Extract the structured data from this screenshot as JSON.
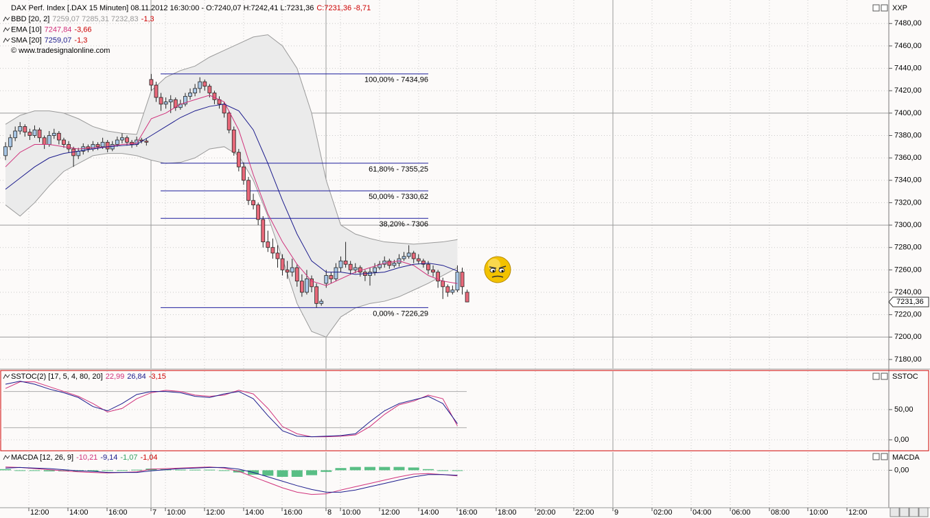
{
  "chart_data": [
    {
      "type": "candlestick",
      "title": "DAX Perf. Index [.DAX  15 Minuten] 08.11.2012 16:30:00 - O:7240,07 H:7242,41 L:7231,36",
      "title_change": "C:7231,36 -8,71",
      "change_color": "#cc0000",
      "source": "© www.tradesignalonline.com",
      "axis_title": "XXP",
      "last_label": "7231,36",
      "up_color": "#a9c7e6",
      "down_color": "#e8697a",
      "ylim": [
        7172,
        7501
      ],
      "yticks": [
        {
          "value": 7180,
          "label": "7180,00"
        },
        {
          "value": 7200,
          "label": "7200,00"
        },
        {
          "value": 7220,
          "label": "7220,00"
        },
        {
          "value": 7240,
          "label": "7240,00"
        },
        {
          "value": 7260,
          "label": "7260,00"
        },
        {
          "value": 7280,
          "label": "7280,00"
        },
        {
          "value": 7300,
          "label": "7300,00"
        },
        {
          "value": 7320,
          "label": "7320,00"
        },
        {
          "value": 7340,
          "label": "7340,00"
        },
        {
          "value": 7360,
          "label": "7360,00"
        },
        {
          "value": 7380,
          "label": "7380,00"
        },
        {
          "value": 7400,
          "label": "7400,00"
        },
        {
          "value": 7420,
          "label": "7420,00"
        },
        {
          "value": 7440,
          "label": "7440,00"
        },
        {
          "value": 7460,
          "label": "7460,00"
        },
        {
          "value": 7480,
          "label": "7480,00"
        }
      ],
      "grid": true,
      "candles": [
        [
          7362,
          7374,
          7358,
          7370
        ],
        [
          7370,
          7381,
          7367,
          7378
        ],
        [
          7378,
          7388,
          7375,
          7384
        ],
        [
          7384,
          7392,
          7381,
          7388
        ],
        [
          7388,
          7390,
          7379,
          7383
        ],
        [
          7383,
          7386,
          7376,
          7380
        ],
        [
          7380,
          7389,
          7378,
          7385
        ],
        [
          7385,
          7387,
          7374,
          7378
        ],
        [
          7378,
          7380,
          7368,
          7372
        ],
        [
          7372,
          7384,
          7370,
          7380
        ],
        [
          7380,
          7386,
          7377,
          7382
        ],
        [
          7382,
          7384,
          7372,
          7376
        ],
        [
          7376,
          7378,
          7369,
          7372
        ],
        [
          7372,
          7375,
          7365,
          7368
        ],
        [
          7368,
          7370,
          7352,
          7362
        ],
        [
          7362,
          7369,
          7359,
          7366
        ],
        [
          7366,
          7373,
          7363,
          7370
        ],
        [
          7370,
          7372,
          7365,
          7368
        ],
        [
          7368,
          7375,
          7366,
          7372
        ],
        [
          7372,
          7374,
          7367,
          7370
        ],
        [
          7370,
          7378,
          7368,
          7374
        ],
        [
          7374,
          7376,
          7365,
          7368
        ],
        [
          7368,
          7375,
          7366,
          7372
        ],
        [
          7372,
          7379,
          7370,
          7376
        ],
        [
          7376,
          7382,
          7373,
          7378
        ],
        [
          7378,
          7380,
          7371,
          7374
        ],
        [
          7374,
          7376,
          7369,
          7372
        ],
        [
          7372,
          7379,
          7370,
          7376
        ],
        [
          7376,
          7378,
          7373,
          7375
        ],
        [
          7375,
          7377,
          7371,
          7374
        ],
        [
          7430,
          7434.96,
          7420,
          7425
        ],
        [
          7425,
          7428,
          7410,
          7414
        ],
        [
          7414,
          7418,
          7402,
          7408
        ],
        [
          7408,
          7414,
          7404,
          7410
        ],
        [
          7410,
          7416,
          7400,
          7412
        ],
        [
          7412,
          7414,
          7402,
          7405
        ],
        [
          7405,
          7412,
          7403,
          7408
        ],
        [
          7408,
          7418,
          7406,
          7415
        ],
        [
          7415,
          7422,
          7412,
          7418
        ],
        [
          7418,
          7426,
          7415,
          7422
        ],
        [
          7422,
          7432,
          7418,
          7428
        ],
        [
          7428,
          7430,
          7420,
          7424
        ],
        [
          7424,
          7426,
          7414,
          7418
        ],
        [
          7418,
          7420,
          7408,
          7412
        ],
        [
          7412,
          7415,
          7404,
          7408
        ],
        [
          7408,
          7410,
          7396,
          7400
        ],
        [
          7400,
          7402,
          7382,
          7385
        ],
        [
          7385,
          7388,
          7362,
          7365
        ],
        [
          7365,
          7368,
          7348,
          7352
        ],
        [
          7352,
          7356,
          7336,
          7340
        ],
        [
          7340,
          7343,
          7318,
          7322
        ],
        [
          7322,
          7328,
          7314,
          7318
        ],
        [
          7318,
          7320,
          7300,
          7305
        ],
        [
          7305,
          7308,
          7280,
          7285
        ],
        [
          7285,
          7295,
          7276,
          7280
        ],
        [
          7280,
          7288,
          7270,
          7275
        ],
        [
          7275,
          7282,
          7262,
          7270
        ],
        [
          7270,
          7274,
          7255,
          7260
        ],
        [
          7260,
          7268,
          7252,
          7258
        ],
        [
          7258,
          7270,
          7254,
          7262
        ],
        [
          7262,
          7265,
          7245,
          7250
        ],
        [
          7250,
          7256,
          7236,
          7240
        ],
        [
          7240,
          7260,
          7238,
          7252
        ],
        [
          7252,
          7255,
          7240,
          7245
        ],
        [
          7245,
          7248,
          7226.29,
          7230
        ],
        [
          7230,
          7234,
          7228,
          7232
        ],
        [
          7248,
          7260,
          7244,
          7255
        ],
        [
          7255,
          7258,
          7248,
          7252
        ],
        [
          7252,
          7266,
          7250,
          7262
        ],
        [
          7262,
          7272,
          7258,
          7268
        ],
        [
          7268,
          7285,
          7262,
          7265
        ],
        [
          7265,
          7268,
          7256,
          7260
        ],
        [
          7260,
          7266,
          7257,
          7262
        ],
        [
          7262,
          7264,
          7254,
          7258
        ],
        [
          7258,
          7260,
          7250,
          7255
        ],
        [
          7255,
          7262,
          7246,
          7258
        ],
        [
          7258,
          7266,
          7255,
          7262
        ],
        [
          7262,
          7268,
          7260,
          7265
        ],
        [
          7265,
          7272,
          7262,
          7268
        ],
        [
          7268,
          7270,
          7261,
          7264
        ],
        [
          7264,
          7269,
          7262,
          7266
        ],
        [
          7266,
          7274,
          7263,
          7270
        ],
        [
          7270,
          7276,
          7268,
          7272
        ],
        [
          7272,
          7282,
          7270,
          7275
        ],
        [
          7275,
          7277,
          7266,
          7270
        ],
        [
          7270,
          7274,
          7265,
          7268
        ],
        [
          7268,
          7270,
          7262,
          7265
        ],
        [
          7265,
          7268,
          7256,
          7260
        ],
        [
          7260,
          7264,
          7254,
          7258
        ],
        [
          7258,
          7260,
          7244,
          7250
        ],
        [
          7250,
          7253,
          7234,
          7245
        ],
        [
          7245,
          7247,
          7236,
          7240
        ],
        [
          7240,
          7246,
          7238,
          7242
        ],
        [
          7242,
          7264,
          7240,
          7258
        ],
        [
          7258,
          7262,
          7238,
          7245
        ],
        [
          7240.07,
          7242.41,
          7231.36,
          7231.36
        ]
      ],
      "indicators": [
        {
          "name": "BBD [20, 2]",
          "readout": "7259,07 7285,31 7232,83",
          "change": "-1,3",
          "color": "#999999",
          "fill": "#ebebeb",
          "upper": [
            7390,
            7398,
            7402,
            7402,
            7400,
            7395,
            7388,
            7384,
            7382,
            7381,
            7420,
            7432,
            7438,
            7442,
            7450,
            7456,
            7462,
            7468,
            7470,
            7460,
            7440,
            7400,
            7340,
            7300,
            7292,
            7288,
            7285,
            7284,
            7283,
            7284,
            7285,
            7287
          ],
          "lower": [
            7318,
            7308,
            7320,
            7335,
            7348,
            7355,
            7362,
            7364,
            7364,
            7362,
            7358,
            7355,
            7356,
            7360,
            7368,
            7370,
            7362,
            7340,
            7308,
            7270,
            7230,
            7205,
            7200,
            7218,
            7226,
            7230,
            7232,
            7236,
            7242,
            7248,
            7255,
            7262
          ]
        },
        {
          "name": "EMA [10]",
          "readout": "7247,84",
          "change": "-3,66",
          "color": "#d0307a",
          "values": [
            7352,
            7365,
            7372,
            7372,
            7370,
            7368,
            7369,
            7370,
            7372,
            7373,
            7395,
            7400,
            7408,
            7412,
            7416,
            7410,
            7385,
            7345,
            7310,
            7285,
            7265,
            7250,
            7246,
            7252,
            7258,
            7262,
            7266,
            7268,
            7264,
            7255,
            7250,
            7247.84
          ]
        },
        {
          "name": "SMA [20]",
          "readout": "7259,07",
          "change": "-1,3",
          "color": "#1a1a8c",
          "values": [
            7332,
            7342,
            7352,
            7360,
            7364,
            7366,
            7368,
            7370,
            7371,
            7372,
            7380,
            7388,
            7396,
            7402,
            7406,
            7408,
            7402,
            7385,
            7355,
            7322,
            7292,
            7268,
            7258,
            7258,
            7256,
            7257,
            7258,
            7262,
            7265,
            7266,
            7264,
            7259.07
          ]
        }
      ],
      "fibonacci_color": "#1a1a9c",
      "fibonacci": [
        {
          "label": "100,00% - 7434,96",
          "value": 7434.96
        },
        {
          "label": "61,80% - 7355,25",
          "value": 7355.25
        },
        {
          "label": "50,00% - 7330,62",
          "value": 7330.62
        },
        {
          "label": "38,20% - 7306",
          "value": 7306
        },
        {
          "label": "0,00% - 7226,29",
          "value": 7226.29
        }
      ]
    },
    {
      "type": "line",
      "title": "SSTOC(2) [17, 5, 4, 80, 20]",
      "readouts": [
        {
          "text": "22,99",
          "color": "#d0307a"
        },
        {
          "text": "26,84",
          "color": "#1a1a8c"
        },
        {
          "text": "-3,15",
          "color": "#cc0000"
        }
      ],
      "axis_title": "SSTOC",
      "ylim": [
        -17,
        113.6
      ],
      "yticks": [
        {
          "value": 0,
          "label": "0,00"
        },
        {
          "value": 50,
          "label": "50,00"
        }
      ],
      "levels": [
        80,
        20
      ],
      "series": [
        {
          "color": "#d0307a",
          "values": [
            85,
            96,
            96,
            88,
            80,
            72,
            60,
            46,
            52,
            68,
            78,
            82,
            80,
            74,
            72,
            74,
            82,
            76,
            52,
            22,
            10,
            5,
            5,
            6,
            8,
            22,
            42,
            58,
            64,
            74,
            68,
            22.99
          ]
        },
        {
          "color": "#1a1a8c",
          "values": [
            92,
            97,
            92,
            84,
            78,
            70,
            55,
            48,
            60,
            75,
            80,
            80,
            78,
            72,
            70,
            76,
            80,
            68,
            40,
            15,
            6,
            5,
            6,
            7,
            10,
            30,
            48,
            60,
            66,
            72,
            60,
            26.84
          ]
        }
      ]
    },
    {
      "type": "macd",
      "title": "MACDA [12, 26, 9]",
      "readouts": [
        {
          "text": "-10,21",
          "color": "#d0307a"
        },
        {
          "text": "-9,14",
          "color": "#1a1a8c"
        },
        {
          "text": "-1,07",
          "color": "#2e9e5e"
        },
        {
          "text": "-1,04",
          "color": "#cc0000"
        }
      ],
      "axis_title": "MACDA",
      "ylim": [
        -67,
        33
      ],
      "yticks": [
        {
          "value": 0,
          "label": "0,00"
        }
      ],
      "series": [
        {
          "kind": "bar",
          "color": "#3cb371",
          "values": [
            2,
            0,
            -1,
            -2,
            -2,
            -2,
            -2,
            -1,
            0,
            1,
            3,
            2,
            1,
            1,
            1,
            -1,
            -4,
            -8,
            -10,
            -12,
            -12,
            -9,
            -3,
            4,
            6,
            6,
            6,
            6,
            5,
            2,
            0,
            -1.07
          ]
        },
        {
          "kind": "line",
          "color": "#d0307a",
          "values": [
            6,
            5,
            3,
            1,
            -1,
            -3,
            -4,
            -5,
            -4,
            -3,
            2,
            3,
            4,
            5,
            6,
            4,
            -2,
            -12,
            -22,
            -32,
            -40,
            -44,
            -43,
            -36,
            -30,
            -24,
            -18,
            -12,
            -7,
            -6,
            -8,
            -10.21
          ]
        },
        {
          "kind": "line",
          "color": "#1a1a8c",
          "values": [
            4,
            5,
            4,
            3,
            1,
            -1,
            -2,
            -4,
            -4,
            -4,
            -1,
            1,
            3,
            4,
            5,
            5,
            2,
            -4,
            -12,
            -20,
            -28,
            -35,
            -40,
            -40,
            -36,
            -30,
            -24,
            -18,
            -12,
            -8,
            -8,
            -9.14
          ]
        }
      ]
    }
  ],
  "time_axis": {
    "labels": [
      "12:00",
      "14:00",
      "16:00",
      "7",
      "10:00",
      "12:00",
      "14:00",
      "16:00",
      "8",
      "10:00",
      "12:00",
      "14:00",
      "16:00",
      "18:00",
      "20:00",
      "22:00",
      "9",
      "02:00",
      "04:00",
      "06:00",
      "08:00",
      "10:00",
      "12:00"
    ]
  }
}
